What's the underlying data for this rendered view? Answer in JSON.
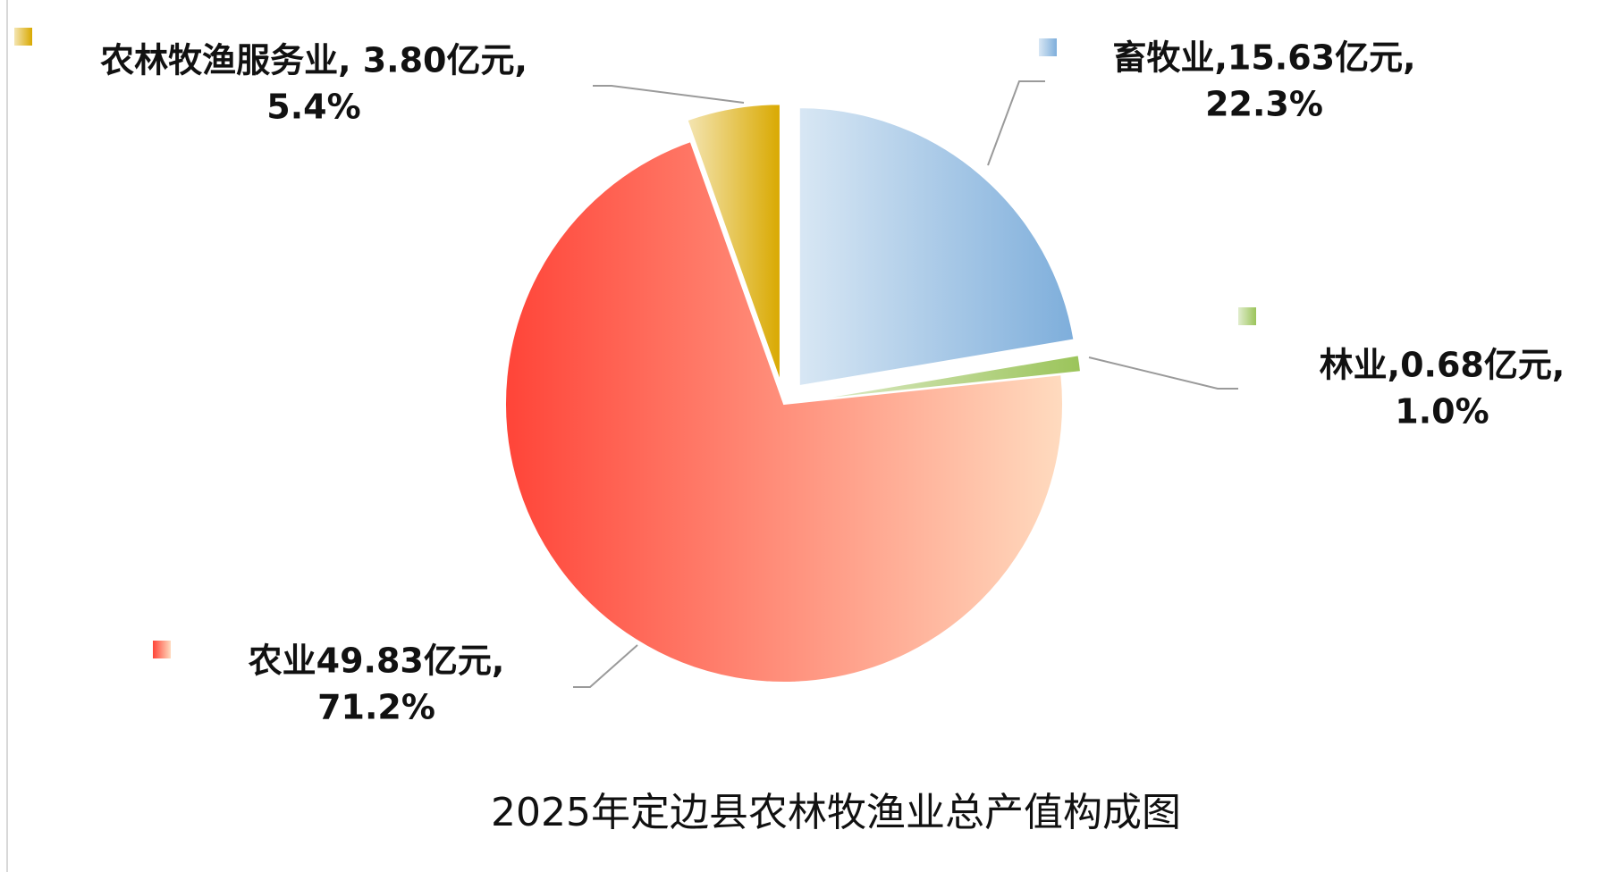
{
  "chart_data": {
    "type": "pie",
    "title": "2025年定边县农林牧渔业总产值构成图",
    "values": [
      15.63,
      0.68,
      49.83,
      3.8
    ],
    "value_labels": [
      [
        "畜牧业,15.63亿元,",
        "22.3%"
      ],
      [
        "林业,0.68亿元,",
        "1.0%"
      ],
      [
        "农业49.83亿元,",
        "71.2%"
      ],
      [
        "农林牧渔服务业, 3.80亿元,",
        "5.4%"
      ]
    ],
    "colors": [
      "#7eaedb",
      "#9bc45a",
      "#ff4438",
      "#d9a900"
    ]
  }
}
